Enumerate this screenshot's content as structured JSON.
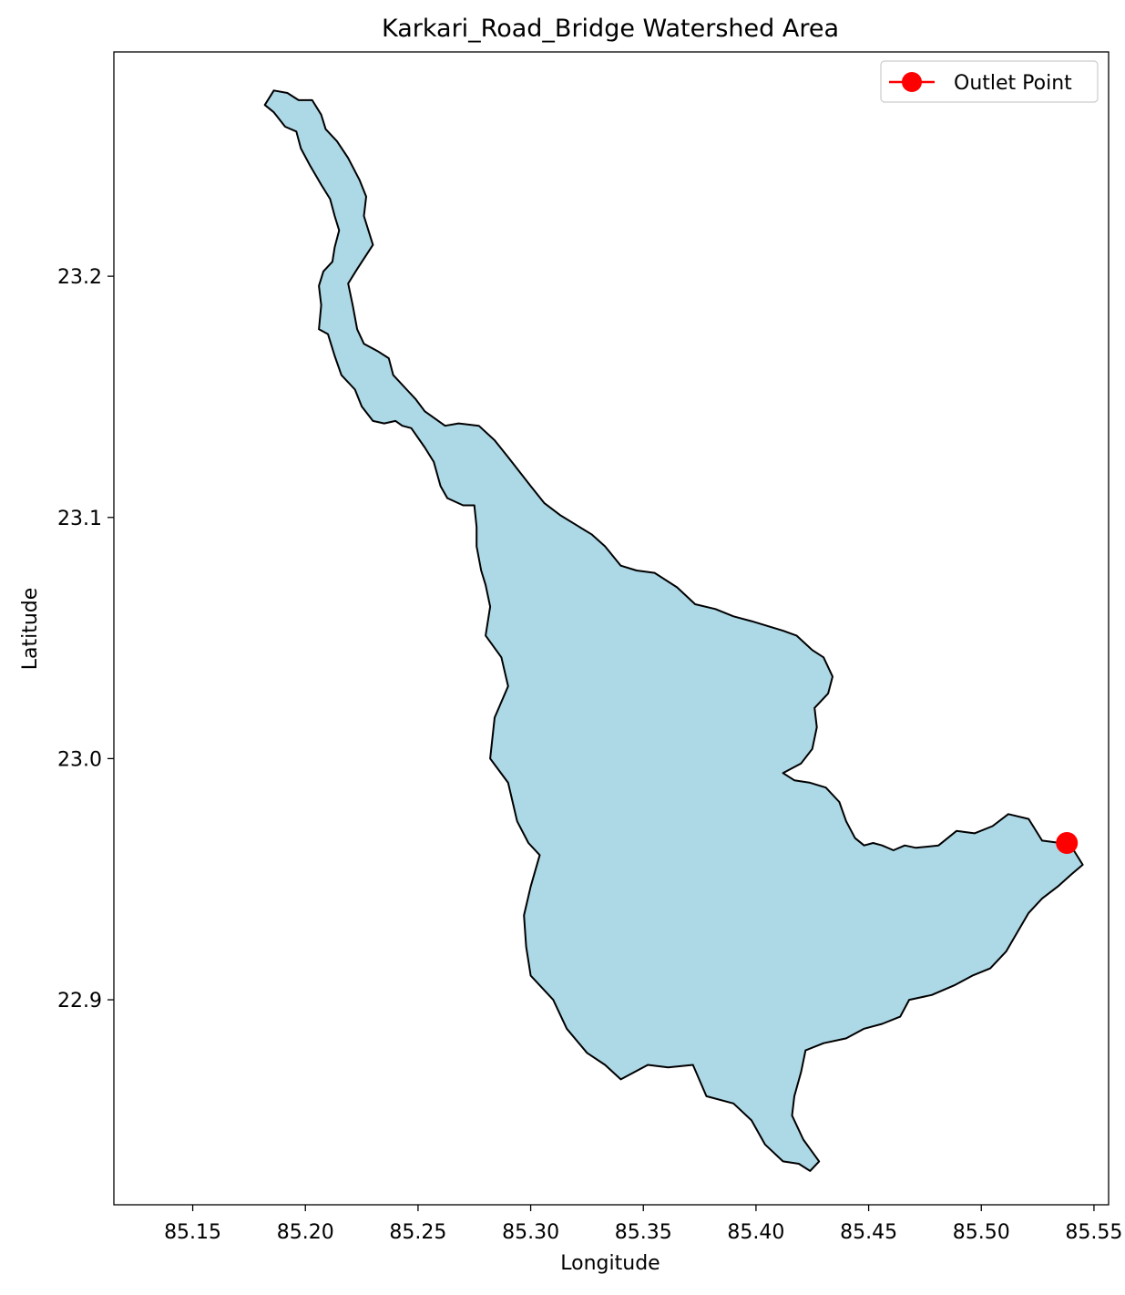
{
  "chart_data": {
    "type": "map",
    "title": "Karkari_Road_Bridge Watershed Area",
    "xlabel": "Longitude",
    "ylabel": "Latitude",
    "xlim": [
      85.115,
      85.5565
    ],
    "ylim": [
      22.815,
      23.293
    ],
    "x_ticks": [
      85.15,
      85.2,
      85.25,
      85.3,
      85.35,
      85.4,
      85.45,
      85.5,
      85.55
    ],
    "x_tick_labels": [
      "85.15",
      "85.20",
      "85.25",
      "85.30",
      "85.35",
      "85.40",
      "85.45",
      "85.50",
      "85.55"
    ],
    "y_ticks": [
      22.9,
      23.0,
      23.1,
      23.2
    ],
    "y_tick_labels": [
      "22.9",
      "23.0",
      "23.1",
      "23.2"
    ],
    "grid": false,
    "legend": {
      "placement": "top-right",
      "entries": [
        {
          "label": "Outlet Point",
          "color": "#ff0000",
          "marker": "circle"
        }
      ]
    },
    "watershed": {
      "fill": "#add8e6",
      "edge": "#000000",
      "boundary": [
        [
          85.182,
          23.271
        ],
        [
          85.186,
          23.268
        ],
        [
          85.191,
          23.262
        ],
        [
          85.196,
          23.26
        ],
        [
          85.198,
          23.253
        ],
        [
          85.202,
          23.246
        ],
        [
          85.207,
          23.238
        ],
        [
          85.211,
          23.232
        ],
        [
          85.213,
          23.225
        ],
        [
          85.215,
          23.219
        ],
        [
          85.213,
          23.212
        ],
        [
          85.212,
          23.206
        ],
        [
          85.208,
          23.202
        ],
        [
          85.206,
          23.196
        ],
        [
          85.207,
          23.188
        ],
        [
          85.206,
          23.178
        ],
        [
          85.21,
          23.176
        ],
        [
          85.213,
          23.167
        ],
        [
          85.216,
          23.159
        ],
        [
          85.222,
          23.153
        ],
        [
          85.225,
          23.146
        ],
        [
          85.23,
          23.14
        ],
        [
          85.235,
          23.139
        ],
        [
          85.24,
          23.14
        ],
        [
          85.243,
          23.138
        ],
        [
          85.247,
          23.137
        ],
        [
          85.253,
          23.129
        ],
        [
          85.257,
          23.123
        ],
        [
          85.26,
          23.113
        ],
        [
          85.263,
          23.108
        ],
        [
          85.27,
          23.105
        ],
        [
          85.275,
          23.105
        ],
        [
          85.276,
          23.096
        ],
        [
          85.276,
          23.088
        ],
        [
          85.278,
          23.078
        ],
        [
          85.28,
          23.072
        ],
        [
          85.282,
          23.063
        ],
        [
          85.28,
          23.051
        ],
        [
          85.287,
          23.042
        ],
        [
          85.29,
          23.03
        ],
        [
          85.284,
          23.017
        ],
        [
          85.282,
          23.0
        ],
        [
          85.29,
          22.99
        ],
        [
          85.294,
          22.974
        ],
        [
          85.299,
          22.965
        ],
        [
          85.304,
          22.96
        ],
        [
          85.3,
          22.947
        ],
        [
          85.297,
          22.935
        ],
        [
          85.298,
          22.922
        ],
        [
          85.3,
          22.91
        ],
        [
          85.31,
          22.9
        ],
        [
          85.316,
          22.888
        ],
        [
          85.325,
          22.878
        ],
        [
          85.333,
          22.873
        ],
        [
          85.34,
          22.867
        ],
        [
          85.352,
          22.873
        ],
        [
          85.361,
          22.872
        ],
        [
          85.372,
          22.873
        ],
        [
          85.378,
          22.86
        ],
        [
          85.39,
          22.857
        ],
        [
          85.398,
          22.85
        ],
        [
          85.404,
          22.84
        ],
        [
          85.412,
          22.833
        ],
        [
          85.419,
          22.832
        ],
        [
          85.424,
          22.829
        ],
        [
          85.428,
          22.833
        ],
        [
          85.421,
          22.842
        ],
        [
          85.416,
          22.852
        ],
        [
          85.417,
          22.86
        ],
        [
          85.42,
          22.87
        ],
        [
          85.422,
          22.879
        ],
        [
          85.43,
          22.882
        ],
        [
          85.44,
          22.884
        ],
        [
          85.448,
          22.888
        ],
        [
          85.456,
          22.89
        ],
        [
          85.464,
          22.893
        ],
        [
          85.468,
          22.9
        ],
        [
          85.478,
          22.902
        ],
        [
          85.488,
          22.906
        ],
        [
          85.496,
          22.91
        ],
        [
          85.504,
          22.913
        ],
        [
          85.511,
          22.92
        ],
        [
          85.516,
          22.928
        ],
        [
          85.521,
          22.936
        ],
        [
          85.527,
          22.942
        ],
        [
          85.534,
          22.947
        ],
        [
          85.54,
          22.952
        ],
        [
          85.545,
          22.956
        ],
        [
          85.541,
          22.962
        ],
        [
          85.535,
          22.965
        ],
        [
          85.527,
          22.966
        ],
        [
          85.521,
          22.975
        ],
        [
          85.512,
          22.977
        ],
        [
          85.505,
          22.972
        ],
        [
          85.497,
          22.969
        ],
        [
          85.489,
          22.97
        ],
        [
          85.481,
          22.964
        ],
        [
          85.471,
          22.963
        ],
        [
          85.466,
          22.964
        ],
        [
          85.461,
          22.962
        ],
        [
          85.456,
          22.964
        ],
        [
          85.452,
          22.965
        ],
        [
          85.448,
          22.964
        ],
        [
          85.444,
          22.967
        ],
        [
          85.44,
          22.974
        ],
        [
          85.437,
          22.982
        ],
        [
          85.431,
          22.988
        ],
        [
          85.424,
          22.99
        ],
        [
          85.417,
          22.991
        ],
        [
          85.412,
          22.994
        ],
        [
          85.42,
          22.998
        ],
        [
          85.425,
          23.004
        ],
        [
          85.427,
          23.013
        ],
        [
          85.426,
          23.021
        ],
        [
          85.432,
          23.027
        ],
        [
          85.434,
          23.034
        ],
        [
          85.43,
          23.042
        ],
        [
          85.425,
          23.045
        ],
        [
          85.418,
          23.051
        ],
        [
          85.412,
          23.053
        ],
        [
          85.398,
          23.057
        ],
        [
          85.39,
          23.059
        ],
        [
          85.382,
          23.062
        ],
        [
          85.373,
          23.064
        ],
        [
          85.365,
          23.071
        ],
        [
          85.355,
          23.077
        ],
        [
          85.347,
          23.078
        ],
        [
          85.34,
          23.08
        ],
        [
          85.333,
          23.088
        ],
        [
          85.327,
          23.093
        ],
        [
          85.32,
          23.097
        ],
        [
          85.313,
          23.101
        ],
        [
          85.306,
          23.106
        ],
        [
          85.3,
          23.113
        ],
        [
          85.295,
          23.119
        ],
        [
          85.29,
          23.125
        ],
        [
          85.284,
          23.132
        ],
        [
          85.277,
          23.138
        ],
        [
          85.268,
          23.139
        ],
        [
          85.262,
          23.138
        ],
        [
          85.253,
          23.144
        ],
        [
          85.249,
          23.149
        ],
        [
          85.245,
          23.153
        ],
        [
          85.239,
          23.159
        ],
        [
          85.237,
          23.166
        ],
        [
          85.232,
          23.169
        ],
        [
          85.226,
          23.172
        ],
        [
          85.223,
          23.178
        ],
        [
          85.221,
          23.188
        ],
        [
          85.219,
          23.197
        ],
        [
          85.223,
          23.203
        ],
        [
          85.23,
          23.213
        ],
        [
          85.226,
          23.225
        ],
        [
          85.227,
          23.233
        ],
        [
          85.224,
          23.24
        ],
        [
          85.219,
          23.249
        ],
        [
          85.214,
          23.256
        ],
        [
          85.209,
          23.261
        ],
        [
          85.207,
          23.267
        ],
        [
          85.203,
          23.273
        ],
        [
          85.197,
          23.273
        ],
        [
          85.192,
          23.276
        ],
        [
          85.186,
          23.277
        ],
        [
          85.182,
          23.271
        ]
      ]
    },
    "outlet_point": {
      "label": "Outlet Point",
      "lon": 85.538,
      "lat": 22.965,
      "color": "#ff0000"
    }
  }
}
